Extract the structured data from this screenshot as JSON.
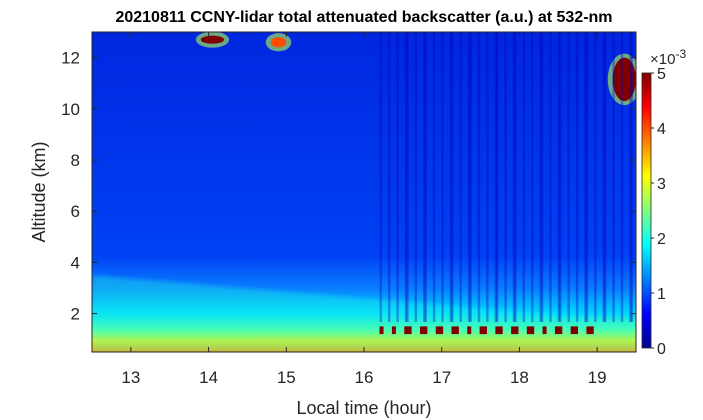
{
  "chart_data": {
    "type": "heatmap",
    "title": "20210811 CCNY-lidar total attenuated backscatter (a.u.) at 532-nm",
    "xlabel": "Local time (hour)",
    "ylabel": "Altitude (km)",
    "xlim": [
      12.5,
      19.5
    ],
    "ylim": [
      0.5,
      13
    ],
    "xticks": [
      "13",
      "14",
      "15",
      "16",
      "17",
      "18",
      "19"
    ],
    "yticks": [
      "2",
      "4",
      "6",
      "8",
      "10",
      "12"
    ],
    "colorbar": {
      "min": 0,
      "max": 5,
      "ticks": [
        "0",
        "1",
        "2",
        "3",
        "4",
        "5"
      ],
      "exponent": "×10",
      "exponent_power": "-3",
      "colormap": "jet"
    },
    "features": [
      {
        "name": "boundary layer",
        "x_range": [
          12.5,
          19.5
        ],
        "altitude_top_km": [
          3.5,
          1.7
        ],
        "value": [
          2.0,
          2.5
        ]
      },
      {
        "name": "high aerosol near surface",
        "x_range": [
          16.2,
          19.0
        ],
        "altitude_km": [
          1.2,
          1.5
        ],
        "value": 5.0
      },
      {
        "name": "cirrus cloud",
        "x_range": [
          13.9,
          14.2
        ],
        "altitude_km": [
          12.6,
          12.8
        ],
        "value": 5.0
      },
      {
        "name": "cirrus cloud",
        "x_range": [
          14.8,
          15.0
        ],
        "altitude_km": [
          12.4,
          12.8
        ],
        "value": 4.0
      },
      {
        "name": "cirrus cloud",
        "x_range": [
          19.2,
          19.5
        ],
        "altitude_km": [
          10.3,
          12.0
        ],
        "value": 5.0
      },
      {
        "name": "reduced signal / noise",
        "x_range": [
          16.2,
          19.5
        ],
        "altitude_km": [
          0.5,
          13
        ],
        "value": 0.3
      }
    ]
  }
}
